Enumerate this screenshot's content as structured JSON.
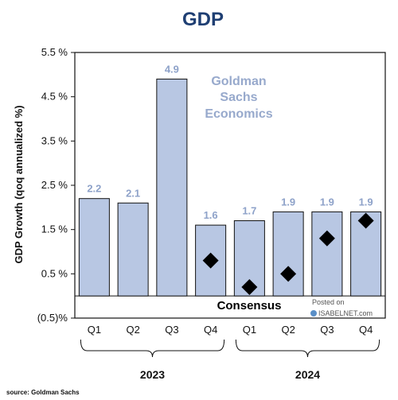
{
  "chart_data": {
    "type": "bar",
    "title": "GDP",
    "ylabel": "GDP Growth (qoq annualized %)",
    "ylim": [
      -0.5,
      5.5
    ],
    "yticks": [
      {
        "value": 5.5,
        "label": "5.5 %"
      },
      {
        "value": 4.5,
        "label": "4.5 %"
      },
      {
        "value": 3.5,
        "label": "3.5 %"
      },
      {
        "value": 2.5,
        "label": "2.5 %"
      },
      {
        "value": 1.5,
        "label": "1.5 %"
      },
      {
        "value": 0.5,
        "label": "0.5 %"
      },
      {
        "value": -0.5,
        "label": "(0.5)%"
      }
    ],
    "categories": [
      "Q1",
      "Q2",
      "Q3",
      "Q4",
      "Q1",
      "Q2",
      "Q3",
      "Q4"
    ],
    "years": [
      {
        "label": "2023",
        "from": 0,
        "to": 3
      },
      {
        "label": "2024",
        "from": 4,
        "to": 7
      }
    ],
    "series": [
      {
        "values": [
          2.2,
          2.1,
          4.9,
          1.6,
          1.7,
          1.9,
          1.9,
          1.9
        ],
        "labels": [
          "2.2",
          "2.1",
          "4.9",
          "1.6",
          "1.7",
          "1.9",
          "1.9",
          "1.9"
        ]
      },
      {
        "name": "Consensus",
        "values": [
          null,
          null,
          null,
          0.8,
          0.2,
          0.5,
          1.3,
          1.7
        ]
      }
    ],
    "annotation": [
      "Goldman",
      "Sachs",
      "Economics"
    ],
    "consensus_label": "Consensus",
    "grid": false,
    "colors": {
      "bar": "#b8c7e3",
      "bar_stroke": "#111111",
      "label": "#8ea2c9",
      "annotation": "#97a9cc",
      "marker": "#000000"
    }
  },
  "source": "source: Goldman Sachs",
  "watermark": {
    "line1": "Posted on",
    "line2": "ISABELNET.com"
  }
}
